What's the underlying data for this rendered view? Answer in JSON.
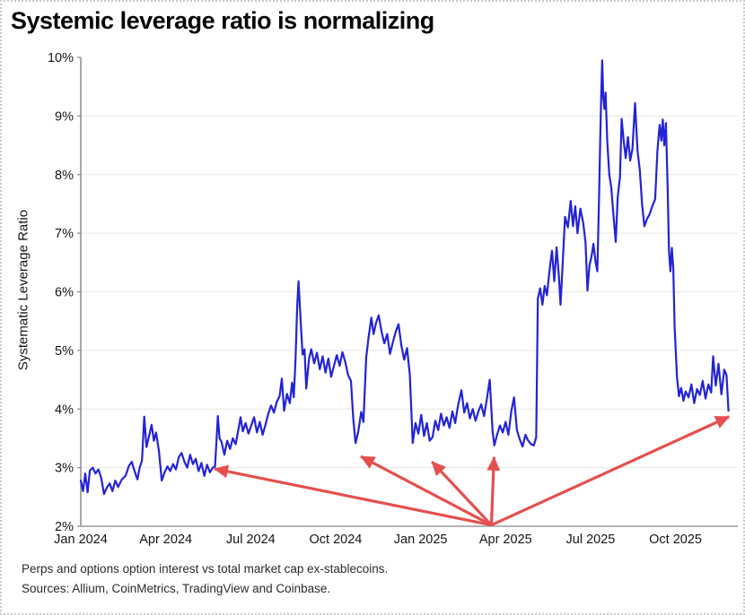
{
  "title": "Systemic leverage ratio is normalizing",
  "footer": {
    "line1": "Perps and options option interest vs total market cap ex-stablecoins.",
    "line2": "Sources: Allium, CoinMetrics, TradingView and Coinbase."
  },
  "chart_data": {
    "type": "line",
    "title": "Systemic leverage ratio is normalizing",
    "xlabel": "",
    "ylabel": "Systematic Leverage Ratio",
    "ylim": [
      2,
      10
    ],
    "xlim_months_since_jan2024": [
      0,
      23.2
    ],
    "grid": "horizontal-only",
    "background": "#ffffff",
    "axis_color": "#8a8a8a",
    "grid_color": "#e7e7e7",
    "tick_label_color": "#151515",
    "y_ticks": [
      {
        "value": 2,
        "label": "2%"
      },
      {
        "value": 3,
        "label": "3%"
      },
      {
        "value": 4,
        "label": "4%"
      },
      {
        "value": 5,
        "label": "5%"
      },
      {
        "value": 6,
        "label": "6%"
      },
      {
        "value": 7,
        "label": "7%"
      },
      {
        "value": 8,
        "label": "8%"
      },
      {
        "value": 9,
        "label": "9%"
      },
      {
        "value": 10,
        "label": "10%"
      }
    ],
    "x_ticks": [
      {
        "month": 0,
        "label": "Jan 2024"
      },
      {
        "month": 3,
        "label": "Apr 2024"
      },
      {
        "month": 6,
        "label": "Jul 2024"
      },
      {
        "month": 9,
        "label": "Oct 2024"
      },
      {
        "month": 12,
        "label": "Jan 2025"
      },
      {
        "month": 15,
        "label": "Apr 2025"
      },
      {
        "month": 18,
        "label": "Jul 2025"
      },
      {
        "month": 21,
        "label": "Oct 2025"
      }
    ],
    "series": [
      {
        "name": "Systematic Leverage Ratio",
        "color": "#2323d6",
        "line_width": 2.2,
        "points": [
          [
            0.0,
            2.78
          ],
          [
            0.08,
            2.6
          ],
          [
            0.16,
            2.9
          ],
          [
            0.24,
            2.58
          ],
          [
            0.32,
            2.95
          ],
          [
            0.42,
            3.0
          ],
          [
            0.52,
            2.9
          ],
          [
            0.62,
            2.97
          ],
          [
            0.72,
            2.83
          ],
          [
            0.82,
            2.55
          ],
          [
            0.92,
            2.66
          ],
          [
            1.02,
            2.73
          ],
          [
            1.12,
            2.6
          ],
          [
            1.22,
            2.78
          ],
          [
            1.32,
            2.67
          ],
          [
            1.45,
            2.8
          ],
          [
            1.58,
            2.86
          ],
          [
            1.7,
            3.03
          ],
          [
            1.8,
            3.1
          ],
          [
            1.9,
            2.94
          ],
          [
            2.0,
            2.8
          ],
          [
            2.08,
            3.0
          ],
          [
            2.16,
            3.12
          ],
          [
            2.24,
            3.87
          ],
          [
            2.32,
            3.35
          ],
          [
            2.42,
            3.56
          ],
          [
            2.5,
            3.73
          ],
          [
            2.58,
            3.46
          ],
          [
            2.66,
            3.6
          ],
          [
            2.76,
            3.28
          ],
          [
            2.86,
            2.78
          ],
          [
            2.96,
            2.92
          ],
          [
            3.06,
            3.02
          ],
          [
            3.16,
            2.94
          ],
          [
            3.26,
            3.06
          ],
          [
            3.36,
            2.97
          ],
          [
            3.46,
            3.18
          ],
          [
            3.56,
            3.25
          ],
          [
            3.66,
            3.1
          ],
          [
            3.76,
            3.0
          ],
          [
            3.86,
            3.22
          ],
          [
            3.96,
            3.06
          ],
          [
            4.06,
            3.15
          ],
          [
            4.16,
            2.94
          ],
          [
            4.26,
            3.08
          ],
          [
            4.36,
            2.86
          ],
          [
            4.46,
            3.05
          ],
          [
            4.56,
            2.92
          ],
          [
            4.66,
            3.0
          ],
          [
            4.74,
            3.02
          ],
          [
            4.8,
            3.52
          ],
          [
            4.84,
            3.88
          ],
          [
            4.9,
            3.5
          ],
          [
            4.97,
            3.44
          ],
          [
            5.07,
            3.22
          ],
          [
            5.17,
            3.46
          ],
          [
            5.27,
            3.32
          ],
          [
            5.37,
            3.5
          ],
          [
            5.47,
            3.4
          ],
          [
            5.57,
            3.66
          ],
          [
            5.64,
            3.86
          ],
          [
            5.72,
            3.62
          ],
          [
            5.82,
            3.76
          ],
          [
            5.92,
            3.58
          ],
          [
            6.02,
            3.72
          ],
          [
            6.12,
            3.86
          ],
          [
            6.22,
            3.6
          ],
          [
            6.32,
            3.78
          ],
          [
            6.42,
            3.56
          ],
          [
            6.52,
            3.73
          ],
          [
            6.62,
            3.92
          ],
          [
            6.72,
            4.06
          ],
          [
            6.82,
            3.94
          ],
          [
            6.92,
            4.12
          ],
          [
            7.02,
            4.22
          ],
          [
            7.1,
            4.52
          ],
          [
            7.18,
            3.97
          ],
          [
            7.28,
            4.26
          ],
          [
            7.38,
            4.1
          ],
          [
            7.46,
            4.45
          ],
          [
            7.52,
            4.2
          ],
          [
            7.58,
            4.83
          ],
          [
            7.64,
            5.75
          ],
          [
            7.69,
            6.18
          ],
          [
            7.76,
            5.55
          ],
          [
            7.83,
            4.93
          ],
          [
            7.9,
            5.02
          ],
          [
            7.96,
            4.35
          ],
          [
            8.06,
            4.86
          ],
          [
            8.14,
            5.02
          ],
          [
            8.24,
            4.78
          ],
          [
            8.34,
            4.96
          ],
          [
            8.44,
            4.68
          ],
          [
            8.54,
            4.9
          ],
          [
            8.64,
            4.62
          ],
          [
            8.74,
            4.86
          ],
          [
            8.84,
            4.55
          ],
          [
            8.94,
            4.74
          ],
          [
            9.04,
            4.92
          ],
          [
            9.14,
            4.74
          ],
          [
            9.24,
            4.97
          ],
          [
            9.34,
            4.8
          ],
          [
            9.44,
            4.58
          ],
          [
            9.54,
            4.48
          ],
          [
            9.62,
            3.85
          ],
          [
            9.7,
            3.42
          ],
          [
            9.8,
            3.62
          ],
          [
            9.9,
            3.95
          ],
          [
            9.98,
            3.78
          ],
          [
            10.08,
            4.88
          ],
          [
            10.16,
            5.22
          ],
          [
            10.26,
            5.56
          ],
          [
            10.34,
            5.28
          ],
          [
            10.42,
            5.46
          ],
          [
            10.52,
            5.6
          ],
          [
            10.62,
            5.32
          ],
          [
            10.72,
            5.12
          ],
          [
            10.82,
            5.28
          ],
          [
            10.92,
            4.94
          ],
          [
            11.02,
            5.14
          ],
          [
            11.12,
            5.32
          ],
          [
            11.22,
            5.45
          ],
          [
            11.32,
            5.08
          ],
          [
            11.42,
            4.84
          ],
          [
            11.52,
            5.04
          ],
          [
            11.62,
            4.58
          ],
          [
            11.72,
            3.42
          ],
          [
            11.82,
            3.76
          ],
          [
            11.92,
            3.58
          ],
          [
            12.02,
            3.9
          ],
          [
            12.12,
            3.54
          ],
          [
            12.22,
            3.76
          ],
          [
            12.32,
            3.46
          ],
          [
            12.42,
            3.52
          ],
          [
            12.52,
            3.8
          ],
          [
            12.62,
            3.64
          ],
          [
            12.72,
            3.92
          ],
          [
            12.82,
            3.72
          ],
          [
            12.92,
            3.86
          ],
          [
            13.02,
            3.68
          ],
          [
            13.12,
            3.96
          ],
          [
            13.22,
            3.76
          ],
          [
            13.32,
            4.06
          ],
          [
            13.44,
            4.32
          ],
          [
            13.54,
            3.94
          ],
          [
            13.64,
            4.1
          ],
          [
            13.74,
            3.84
          ],
          [
            13.84,
            4.0
          ],
          [
            13.94,
            3.8
          ],
          [
            14.04,
            3.96
          ],
          [
            14.14,
            4.08
          ],
          [
            14.24,
            3.88
          ],
          [
            14.34,
            4.18
          ],
          [
            14.44,
            4.5
          ],
          [
            14.54,
            3.62
          ],
          [
            14.6,
            3.38
          ],
          [
            14.7,
            3.56
          ],
          [
            14.8,
            3.72
          ],
          [
            14.9,
            3.6
          ],
          [
            15.0,
            3.78
          ],
          [
            15.1,
            3.56
          ],
          [
            15.2,
            3.96
          ],
          [
            15.3,
            4.2
          ],
          [
            15.4,
            3.64
          ],
          [
            15.5,
            3.48
          ],
          [
            15.6,
            3.36
          ],
          [
            15.7,
            3.56
          ],
          [
            15.8,
            3.46
          ],
          [
            15.9,
            3.4
          ],
          [
            16.0,
            3.38
          ],
          [
            16.08,
            3.52
          ],
          [
            16.14,
            5.88
          ],
          [
            16.22,
            6.06
          ],
          [
            16.3,
            5.78
          ],
          [
            16.38,
            6.1
          ],
          [
            16.46,
            5.94
          ],
          [
            16.56,
            6.4
          ],
          [
            16.64,
            6.7
          ],
          [
            16.72,
            6.18
          ],
          [
            16.8,
            6.76
          ],
          [
            16.88,
            6.28
          ],
          [
            16.94,
            5.78
          ],
          [
            17.02,
            6.52
          ],
          [
            17.1,
            7.28
          ],
          [
            17.2,
            7.1
          ],
          [
            17.3,
            7.55
          ],
          [
            17.38,
            7.12
          ],
          [
            17.46,
            7.46
          ],
          [
            17.54,
            7.0
          ],
          [
            17.64,
            7.42
          ],
          [
            17.74,
            7.18
          ],
          [
            17.82,
            6.85
          ],
          [
            17.89,
            6.02
          ],
          [
            17.96,
            6.45
          ],
          [
            18.04,
            6.62
          ],
          [
            18.1,
            6.82
          ],
          [
            18.18,
            6.5
          ],
          [
            18.24,
            6.35
          ],
          [
            18.3,
            7.6
          ],
          [
            18.34,
            8.6
          ],
          [
            18.38,
            9.4
          ],
          [
            18.41,
            9.95
          ],
          [
            18.45,
            9.32
          ],
          [
            18.49,
            9.12
          ],
          [
            18.53,
            9.4
          ],
          [
            18.59,
            8.58
          ],
          [
            18.66,
            8.0
          ],
          [
            18.73,
            7.78
          ],
          [
            18.81,
            7.3
          ],
          [
            18.89,
            6.85
          ],
          [
            18.96,
            7.62
          ],
          [
            19.04,
            7.95
          ],
          [
            19.1,
            8.95
          ],
          [
            19.17,
            8.58
          ],
          [
            19.24,
            8.28
          ],
          [
            19.32,
            8.64
          ],
          [
            19.4,
            8.24
          ],
          [
            19.48,
            8.44
          ],
          [
            19.57,
            9.22
          ],
          [
            19.66,
            8.4
          ],
          [
            19.74,
            8.08
          ],
          [
            19.82,
            7.48
          ],
          [
            19.9,
            7.12
          ],
          [
            20.0,
            7.25
          ],
          [
            20.08,
            7.32
          ],
          [
            20.18,
            7.46
          ],
          [
            20.28,
            7.58
          ],
          [
            20.36,
            8.4
          ],
          [
            20.44,
            8.85
          ],
          [
            20.5,
            8.58
          ],
          [
            20.55,
            8.94
          ],
          [
            20.6,
            8.5
          ],
          [
            20.66,
            8.88
          ],
          [
            20.72,
            7.8
          ],
          [
            20.77,
            6.7
          ],
          [
            20.82,
            6.35
          ],
          [
            20.87,
            6.75
          ],
          [
            20.92,
            6.4
          ],
          [
            20.97,
            5.4
          ],
          [
            21.05,
            4.55
          ],
          [
            21.12,
            4.22
          ],
          [
            21.2,
            4.36
          ],
          [
            21.28,
            4.14
          ],
          [
            21.36,
            4.3
          ],
          [
            21.46,
            4.2
          ],
          [
            21.56,
            4.42
          ],
          [
            21.66,
            4.1
          ],
          [
            21.76,
            4.34
          ],
          [
            21.86,
            4.24
          ],
          [
            21.96,
            4.48
          ],
          [
            22.06,
            4.18
          ],
          [
            22.16,
            4.42
          ],
          [
            22.26,
            4.28
          ],
          [
            22.33,
            4.9
          ],
          [
            22.42,
            4.4
          ],
          [
            22.52,
            4.77
          ],
          [
            22.62,
            4.25
          ],
          [
            22.72,
            4.67
          ],
          [
            22.8,
            4.58
          ],
          [
            22.87,
            3.97
          ]
        ]
      }
    ],
    "annotations": [
      {
        "type": "arrow-fan",
        "color": "#e4504e",
        "line_width": 3.2,
        "origin": [
          14.5,
          2.02
        ],
        "targets": [
          [
            4.72,
            2.98
          ],
          [
            9.89,
            3.19
          ],
          [
            12.4,
            3.1
          ],
          [
            14.59,
            3.18
          ],
          [
            22.89,
            3.87
          ]
        ]
      }
    ]
  }
}
